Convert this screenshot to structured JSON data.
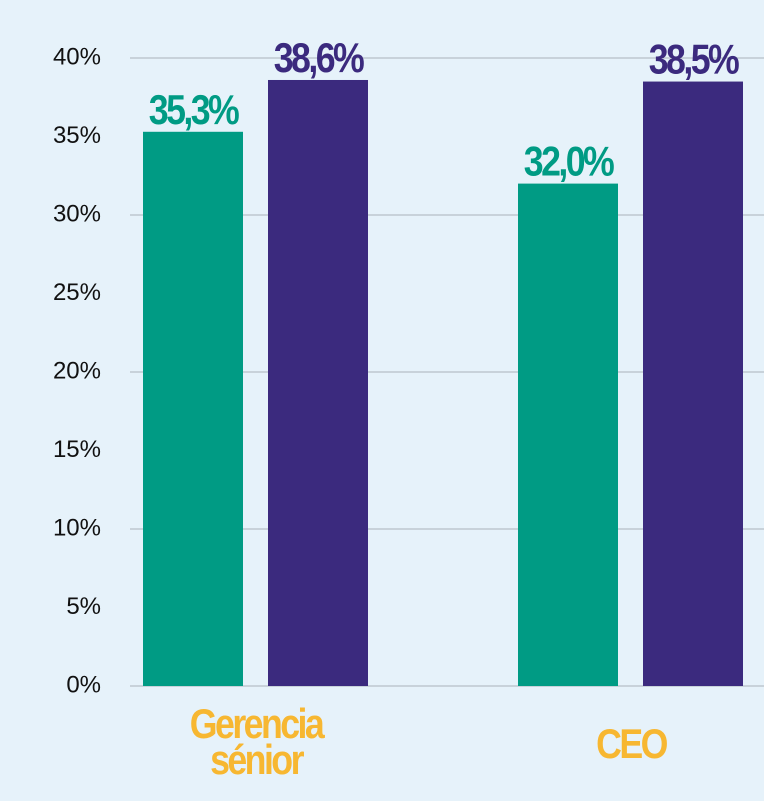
{
  "chart_data": {
    "type": "bar",
    "categories": [
      "Gerencia sénior",
      "CEO"
    ],
    "series": [
      {
        "color": "#009b84",
        "values": [
          35.3,
          32.0
        ],
        "value_labels": [
          "35,3%",
          "32,0%"
        ]
      },
      {
        "color": "#3b2a7e",
        "values": [
          38.6,
          38.5
        ],
        "value_labels": [
          "38,6%",
          "38,5%"
        ]
      }
    ],
    "ylim": [
      0,
      40
    ],
    "yticks": [
      {
        "value": 0,
        "label": "0%"
      },
      {
        "value": 5,
        "label": "5%"
      },
      {
        "value": 10,
        "label": "10%"
      },
      {
        "value": 15,
        "label": "15%"
      },
      {
        "value": 20,
        "label": "20%"
      },
      {
        "value": 25,
        "label": "25%"
      },
      {
        "value": 30,
        "label": "30%"
      },
      {
        "value": 35,
        "label": "35%"
      },
      {
        "value": 40,
        "label": "40%"
      }
    ],
    "category_color": "#f7b731",
    "grid": true
  }
}
